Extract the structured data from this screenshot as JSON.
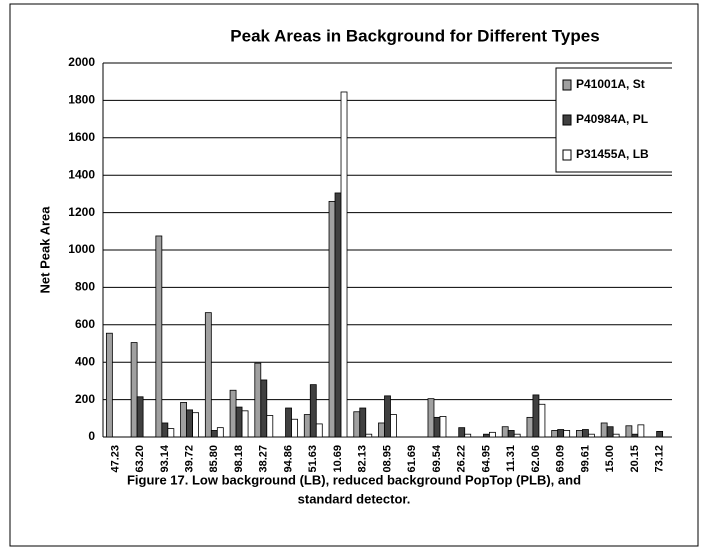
{
  "chart_data": {
    "type": "bar",
    "title": "Peak Areas in Background for Different Types",
    "ylabel": "Net Peak Area",
    "caption": [
      "Figure 17.  Low background (LB), reduced background PopTop (PLB), and",
      "standard detector."
    ],
    "categories": [
      "47.23",
      "63.20",
      "93.14",
      "39.72",
      "85.80",
      "98.18",
      "38.27",
      "94.86",
      "51.63",
      "10.69",
      "82.13",
      "08.95",
      "61.69",
      "69.54",
      "26.22",
      "64.95",
      "11.31",
      "62.06",
      "69.09",
      "99.61",
      "15.00",
      "20.15",
      "73.12"
    ],
    "series": [
      {
        "name": "P41001A, St",
        "color": "#a0a0a0",
        "values": [
          555,
          505,
          1075,
          185,
          665,
          250,
          395,
          0,
          120,
          1260,
          135,
          75,
          0,
          205,
          0,
          0,
          55,
          105,
          35,
          35,
          75,
          60,
          0
        ]
      },
      {
        "name": "P40984A, PL",
        "color": "#404040",
        "values": [
          0,
          215,
          75,
          145,
          35,
          160,
          305,
          155,
          280,
          1305,
          155,
          220,
          0,
          105,
          50,
          15,
          35,
          225,
          40,
          40,
          55,
          15,
          30
        ]
      },
      {
        "name": "P31455A, LB",
        "color": "#ffffff",
        "values": [
          0,
          0,
          45,
          130,
          50,
          140,
          115,
          95,
          70,
          1845,
          15,
          120,
          0,
          110,
          15,
          25,
          15,
          175,
          35,
          15,
          15,
          65,
          0
        ]
      }
    ],
    "ylim": [
      0,
      2000
    ],
    "yticks": [
      0,
      200,
      400,
      600,
      800,
      1000,
      1200,
      1400,
      1600,
      1800,
      2000
    ],
    "grid": true,
    "legend": "upper right"
  }
}
